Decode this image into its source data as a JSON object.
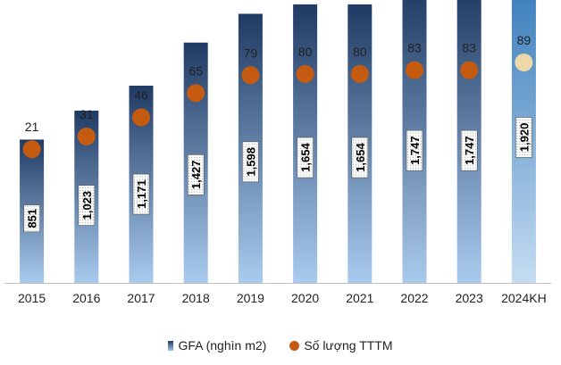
{
  "chart_data": {
    "type": "bar",
    "categories": [
      "2015",
      "2016",
      "2017",
      "2018",
      "2019",
      "2020",
      "2021",
      "2022",
      "2023",
      "2024KH"
    ],
    "series": [
      {
        "name": "GFA (nghìn m2)",
        "kind": "bar",
        "values": [
          851,
          1023,
          1171,
          1427,
          1598,
          1654,
          1654,
          1747,
          1747,
          1920
        ],
        "labels": [
          "851",
          "1,023",
          "1,171",
          "1,427",
          "1,598",
          "1,654",
          "1,654",
          "1,747",
          "1,747",
          "1,920"
        ]
      },
      {
        "name": "Số lượng TTTM",
        "kind": "scatter",
        "values": [
          21,
          31,
          46,
          65,
          79,
          80,
          80,
          83,
          83,
          89
        ],
        "labels": [
          "21",
          "31",
          "46",
          "65",
          "79",
          "80",
          "80",
          "83",
          "83",
          "89"
        ]
      }
    ],
    "bar_ylim": [
      0,
      2500
    ],
    "dot_ylim": [
      -70,
      100
    ],
    "colors": {
      "bar_top": "#1f3a63",
      "bar_bottom": "#a9cbee",
      "bar_plan_top": "#2e75b6",
      "dot": "#c55a11",
      "dot_plan": "#ecd8a8"
    },
    "legend": [
      "GFA (nghìn m2)",
      "Số lượng TTTM"
    ],
    "legend_position": "bottom"
  }
}
